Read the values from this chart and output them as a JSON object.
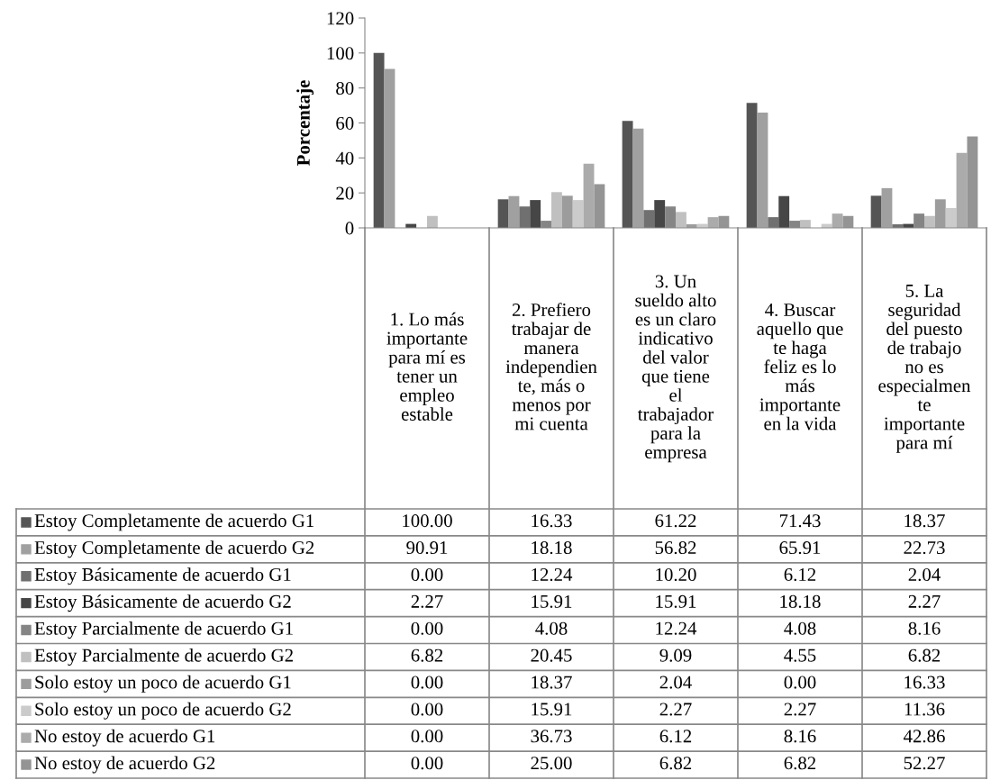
{
  "chart_data": {
    "type": "bar",
    "ylabel": "Porcentaje",
    "categories": [
      "1. Lo más importante para mí es tener un empleo estable",
      "2. Prefiero trabajar de manera independiente, más o menos por mi cuenta",
      "3. Un sueldo alto es un claro indicativo del valor que tiene el trabajador para la empresa",
      "4. Buscar aquello que te haga feliz es lo más importante en la vida",
      "5. La seguridad del puesto de trabajo no es especialmente importante para mí"
    ],
    "ylim": [
      0,
      120
    ],
    "yticks": [
      0,
      20,
      40,
      60,
      80,
      100,
      120
    ],
    "grid": false,
    "legend": "bottom",
    "series": [
      {
        "name": "Estoy Completamente de acuerdo G1",
        "color": "#555555",
        "values": [
          100.0,
          16.33,
          61.22,
          71.43,
          18.37
        ],
        "value_labels": [
          "100.00",
          "16.33",
          "61.22",
          "71.43",
          "18.37"
        ]
      },
      {
        "name": "Estoy Completamente de acuerdo G2",
        "color": "#a0a0a0",
        "values": [
          90.91,
          18.18,
          56.82,
          65.91,
          22.73
        ],
        "value_labels": [
          "90.91",
          "18.18",
          "56.82",
          "65.91",
          "22.73"
        ]
      },
      {
        "name": "Estoy Básicamente de acuerdo G1",
        "color": "#707070",
        "values": [
          0.0,
          12.24,
          10.2,
          6.12,
          2.04
        ],
        "value_labels": [
          "0.00",
          "12.24",
          "10.20",
          "6.12",
          "2.04"
        ]
      },
      {
        "name": "Estoy Básicamente de acuerdo G2",
        "color": "#464646",
        "values": [
          2.27,
          15.91,
          15.91,
          18.18,
          2.27
        ],
        "value_labels": [
          "2.27",
          "15.91",
          "15.91",
          "18.18",
          "2.27"
        ]
      },
      {
        "name": "Estoy Parcialmente de acuerdo G1",
        "color": "#858585",
        "values": [
          0.0,
          4.08,
          12.24,
          4.08,
          8.16
        ],
        "value_labels": [
          "0.00",
          "4.08",
          "12.24",
          "4.08",
          "8.16"
        ]
      },
      {
        "name": "Estoy Parcialmente de acuerdo G2",
        "color": "#c0c0c0",
        "values": [
          6.82,
          20.45,
          9.09,
          4.55,
          6.82
        ],
        "value_labels": [
          "6.82",
          "20.45",
          "9.09",
          "4.55",
          "6.82"
        ]
      },
      {
        "name": "Solo estoy un poco de acuerdo G1",
        "color": "#9c9c9c",
        "values": [
          0.0,
          18.37,
          2.04,
          0.0,
          16.33
        ],
        "value_labels": [
          "0.00",
          "18.37",
          "2.04",
          "0.00",
          "16.33"
        ]
      },
      {
        "name": "Solo estoy un poco de acuerdo G2",
        "color": "#cbcbcb",
        "values": [
          0.0,
          15.91,
          2.27,
          2.27,
          11.36
        ],
        "value_labels": [
          "0.00",
          "15.91",
          "2.27",
          "2.27",
          "11.36"
        ]
      },
      {
        "name": "No estoy de acuerdo G1",
        "color": "#ababab",
        "values": [
          0.0,
          36.73,
          6.12,
          8.16,
          42.86
        ],
        "value_labels": [
          "0.00",
          "36.73",
          "6.12",
          "8.16",
          "42.86"
        ]
      },
      {
        "name": "No estoy de acuerdo G2",
        "color": "#949494",
        "values": [
          0.0,
          25.0,
          6.82,
          6.82,
          52.27
        ],
        "value_labels": [
          "0.00",
          "25.00",
          "6.82",
          "6.82",
          "52.27"
        ]
      }
    ]
  }
}
